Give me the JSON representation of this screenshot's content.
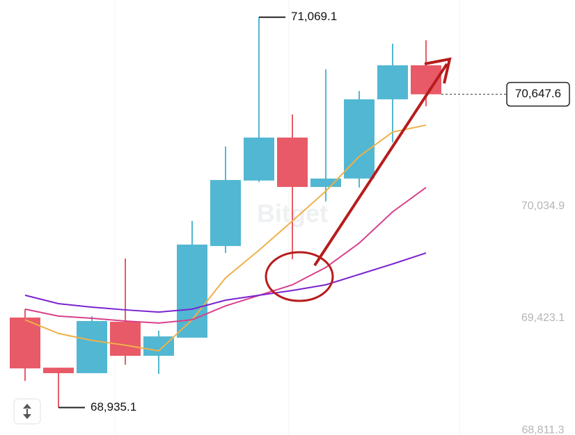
{
  "chart_data": {
    "type": "candlestick",
    "watermark": "Bitget",
    "categories": [
      null,
      null,
      null,
      null,
      null,
      null,
      null,
      null,
      null,
      null,
      null,
      null,
      null
    ],
    "open": [
      69427,
      69153,
      69123,
      69404,
      69218,
      69317,
      69818,
      70176,
      70411,
      70141,
      70187,
      70620,
      70806
    ],
    "high": [
      69473,
      69153,
      69434,
      69750,
      69355,
      69955,
      70362,
      71069.1,
      70537,
      70784,
      70666,
      70924,
      70943
    ],
    "low": [
      69081,
      68935.1,
      69123,
      69169,
      69119,
      69317,
      69780,
      70168,
      69746,
      70062,
      70138,
      70385,
      70582
    ],
    "close": [
      69149,
      69123,
      69408,
      69218,
      69324,
      69826,
      70179,
      70411,
      70141,
      70187,
      70620,
      70806,
      70647.6
    ],
    "up_color": "#52b7d2",
    "down_color": "#e85a67",
    "series": [
      {
        "color": "#efb04a",
        "values": [
          69415,
          69340,
          69302,
          69276,
          69245,
          69415,
          69644,
          69795,
          69955,
          70118,
          70308,
          70441,
          70479
        ]
      },
      {
        "color": "#d8408a",
        "values": [
          69473,
          69435,
          69423,
          69408,
          69397,
          69415,
          69491,
          69548,
          69606,
          69701,
          69834,
          70005,
          70138
        ]
      },
      {
        "color": "#7a22d0",
        "values": [
          69549,
          69503,
          69484,
          69469,
          69457,
          69473,
          69522,
          69549,
          69575,
          69606,
          69663,
          69720,
          69780
        ]
      }
    ],
    "ylim": [
      68785,
      71163
    ],
    "yticks": [
      {
        "value": 68811.3,
        "label": "68,811.3"
      },
      {
        "value": 69423.1,
        "label": "69,423.1"
      },
      {
        "value": 70034.9,
        "label": "70,034.9"
      }
    ],
    "high_label": {
      "value": 71069.1,
      "label": "71,069.1"
    },
    "low_label": {
      "value": 68935.1,
      "label": "68,935.1"
    },
    "last_price": {
      "value": 70647.6,
      "label": "70,647.6"
    }
  }
}
